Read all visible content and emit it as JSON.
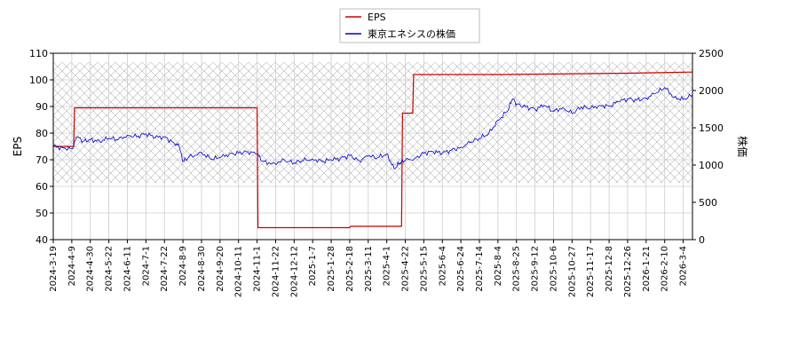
{
  "chart_data": {
    "type": "line",
    "title": "",
    "x_ticks": [
      "2024-3-19",
      "2024-4-9",
      "2024-4-30",
      "2024-5-22",
      "2024-6-11",
      "2024-7-1",
      "2024-7-22",
      "2024-8-9",
      "2024-8-30",
      "2024-9-20",
      "2024-10-11",
      "2024-11-1",
      "2024-11-22",
      "2024-12-12",
      "2025-1-7",
      "2025-1-28",
      "2025-2-18",
      "2025-3-11",
      "2025-4-1",
      "2025-4-22",
      "2025-5-15",
      "2025-6-4",
      "2025-6-24",
      "2025-7-14",
      "2025-8-4",
      "2025-8-25",
      "2025-9-12",
      "2025-10-6",
      "2025-10-27",
      "2025-11-17",
      "2025-12-8",
      "2025-12-26",
      "2026-1-21",
      "2026-2-10",
      "2026-3-4"
    ],
    "y_left": {
      "label": "EPS",
      "range": [
        40,
        110
      ],
      "ticks": [
        40,
        50,
        60,
        70,
        80,
        90,
        100,
        110
      ]
    },
    "y_right": {
      "label": "株価",
      "range": [
        0,
        2500
      ],
      "ticks": [
        0,
        500,
        1000,
        1500,
        2000,
        2500
      ]
    },
    "grid": true,
    "legend": {
      "placement": "top-center",
      "entries": [
        "EPS",
        "東京エネシスの株価"
      ]
    },
    "shaded_band_price": [
      760,
      2380
    ],
    "colors": {
      "eps": "#cc0000",
      "price": "#0000cc"
    },
    "series": [
      {
        "name": "EPS",
        "axis": "left",
        "points": [
          [
            0,
            75.0
          ],
          [
            1.1,
            75.0
          ],
          [
            1.15,
            89.5
          ],
          [
            11.0,
            89.5
          ],
          [
            11.05,
            44.5
          ],
          [
            16.0,
            44.5
          ],
          [
            16.05,
            45.0
          ],
          [
            18.8,
            45.0
          ],
          [
            18.85,
            87.5
          ],
          [
            19.4,
            87.5
          ],
          [
            19.45,
            102.0
          ],
          [
            24.0,
            102.0
          ],
          [
            24.05,
            102.0
          ],
          [
            31.0,
            102.5
          ],
          [
            35.0,
            103.0
          ]
        ]
      },
      {
        "name": "東京エネシスの株価",
        "axis": "right",
        "points": [
          [
            0,
            1250
          ],
          [
            0.5,
            1230
          ],
          [
            1.0,
            1220
          ],
          [
            1.3,
            1380
          ],
          [
            1.6,
            1320
          ],
          [
            2.0,
            1340
          ],
          [
            2.5,
            1320
          ],
          [
            3.0,
            1360
          ],
          [
            3.5,
            1340
          ],
          [
            4.0,
            1400
          ],
          [
            4.5,
            1380
          ],
          [
            5.0,
            1420
          ],
          [
            5.5,
            1370
          ],
          [
            6.0,
            1380
          ],
          [
            6.5,
            1300
          ],
          [
            6.8,
            1250
          ],
          [
            7.0,
            1050
          ],
          [
            7.3,
            1100
          ],
          [
            8.0,
            1170
          ],
          [
            8.5,
            1080
          ],
          [
            9.0,
            1100
          ],
          [
            9.5,
            1150
          ],
          [
            10.0,
            1160
          ],
          [
            10.5,
            1180
          ],
          [
            11.0,
            1150
          ],
          [
            11.3,
            1050
          ],
          [
            11.8,
            1020
          ],
          [
            12.5,
            1060
          ],
          [
            13.0,
            1030
          ],
          [
            13.5,
            1060
          ],
          [
            14.0,
            1080
          ],
          [
            14.5,
            1050
          ],
          [
            15.0,
            1070
          ],
          [
            15.5,
            1090
          ],
          [
            16.0,
            1130
          ],
          [
            16.5,
            1060
          ],
          [
            17.0,
            1120
          ],
          [
            17.5,
            1100
          ],
          [
            18.0,
            1150
          ],
          [
            18.4,
            950
          ],
          [
            18.7,
            1030
          ],
          [
            19.0,
            1060
          ],
          [
            19.5,
            1090
          ],
          [
            20.0,
            1160
          ],
          [
            20.5,
            1180
          ],
          [
            21.0,
            1160
          ],
          [
            21.5,
            1200
          ],
          [
            22.0,
            1240
          ],
          [
            22.5,
            1300
          ],
          [
            23.0,
            1360
          ],
          [
            23.5,
            1420
          ],
          [
            24.0,
            1600
          ],
          [
            24.5,
            1720
          ],
          [
            24.8,
            1890
          ],
          [
            25.0,
            1820
          ],
          [
            25.5,
            1780
          ],
          [
            26.0,
            1750
          ],
          [
            26.5,
            1800
          ],
          [
            27.0,
            1720
          ],
          [
            27.5,
            1770
          ],
          [
            28.0,
            1690
          ],
          [
            28.5,
            1780
          ],
          [
            29.0,
            1760
          ],
          [
            29.5,
            1800
          ],
          [
            30.0,
            1790
          ],
          [
            30.5,
            1850
          ],
          [
            31.0,
            1890
          ],
          [
            31.5,
            1870
          ],
          [
            32.0,
            1900
          ],
          [
            32.5,
            1960
          ],
          [
            33.0,
            2040
          ],
          [
            33.5,
            1910
          ],
          [
            34.0,
            1880
          ],
          [
            34.5,
            1940
          ],
          [
            35.0,
            1830
          ],
          [
            35.3,
            1800
          ],
          [
            35.8,
            1900
          ]
        ]
      }
    ]
  }
}
